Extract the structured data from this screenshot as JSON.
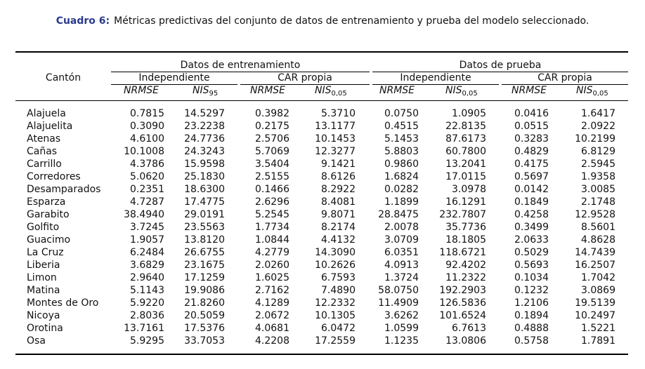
{
  "caption": {
    "label": "Cuadro 6:",
    "text": "Métricas predictivas del conjunto de datos de entrenamiento y prueba del modelo seleccionado."
  },
  "header": {
    "canton": "Cantón",
    "train_group": "Datos de entrenamiento",
    "test_group": "Datos de prueba",
    "independiente": "Independiente",
    "car_propia": "CAR propia",
    "metrics": [
      {
        "base": "NRMSE",
        "sub": ""
      },
      {
        "base": "NIS",
        "sub": "95"
      },
      {
        "base": "NRMSE",
        "sub": ""
      },
      {
        "base": "NIS",
        "sub": "0,05"
      },
      {
        "base": "NRMSE",
        "sub": ""
      },
      {
        "base": "NIS",
        "sub": "0,05"
      },
      {
        "base": "NRMSE",
        "sub": ""
      },
      {
        "base": "NIS",
        "sub": "0,05"
      }
    ]
  },
  "rows": [
    {
      "name": "Alajuela",
      "values": [
        "0.7815",
        "14.5297",
        "0.3982",
        "5.3710",
        "0.0750",
        "1.0905",
        "0.0416",
        "1.6417"
      ]
    },
    {
      "name": "Alajuelita",
      "values": [
        "0.3090",
        "23.2238",
        "0.2175",
        "13.1177",
        "0.4515",
        "22.8135",
        "0.0515",
        "2.0922"
      ]
    },
    {
      "name": "Atenas",
      "values": [
        "4.6100",
        "24.7736",
        "2.5706",
        "10.1453",
        "5.1453",
        "87.6173",
        "0.3283",
        "10.2199"
      ]
    },
    {
      "name": "Cañas",
      "values": [
        "10.1008",
        "24.3243",
        "5.7069",
        "12.3277",
        "5.8803",
        "60.7800",
        "0.4829",
        "6.8129"
      ]
    },
    {
      "name": "Carrillo",
      "values": [
        "4.3786",
        "15.9598",
        "3.5404",
        "9.1421",
        "0.9860",
        "13.2041",
        "0.4175",
        "2.5945"
      ]
    },
    {
      "name": "Corredores",
      "values": [
        "5.0620",
        "25.1830",
        "2.5155",
        "8.6126",
        "1.6824",
        "17.0115",
        "0.5697",
        "1.9358"
      ]
    },
    {
      "name": "Desamparados",
      "values": [
        "0.2351",
        "18.6300",
        "0.1466",
        "8.2922",
        "0.0282",
        "3.0978",
        "0.0142",
        "3.0085"
      ]
    },
    {
      "name": "Esparza",
      "values": [
        "4.7287",
        "17.4775",
        "2.6296",
        "8.4081",
        "1.1899",
        "16.1291",
        "0.1849",
        "2.1748"
      ]
    },
    {
      "name": "Garabito",
      "values": [
        "38.4940",
        "29.0191",
        "5.2545",
        "9.8071",
        "28.8475",
        "232.7807",
        "0.4258",
        "12.9528"
      ]
    },
    {
      "name": "Golfito",
      "values": [
        "3.7245",
        "23.5563",
        "1.7734",
        "8.2174",
        "2.0078",
        "35.7736",
        "0.3499",
        "8.5601"
      ]
    },
    {
      "name": "Guacimo",
      "values": [
        "1.9057",
        "13.8120",
        "1.0844",
        "4.4132",
        "3.0709",
        "18.1805",
        "2.0633",
        "4.8628"
      ]
    },
    {
      "name": "La Cruz",
      "values": [
        "6.2484",
        "26.6755",
        "4.2779",
        "14.3090",
        "6.0351",
        "118.6721",
        "0.5029",
        "14.7439"
      ]
    },
    {
      "name": "Liberia",
      "values": [
        "3.6829",
        "23.1675",
        "2.0260",
        "10.2626",
        "4.0913",
        "92.4202",
        "0.5693",
        "16.2507"
      ]
    },
    {
      "name": "Limon",
      "values": [
        "2.9640",
        "17.1259",
        "1.6025",
        "6.7593",
        "1.3724",
        "11.2322",
        "0.1034",
        "1.7042"
      ]
    },
    {
      "name": "Matina",
      "values": [
        "5.1143",
        "19.9086",
        "2.7162",
        "7.4890",
        "58.0750",
        "192.2903",
        "0.1232",
        "3.0869"
      ]
    },
    {
      "name": "Montes de Oro",
      "values": [
        "5.9220",
        "21.8260",
        "4.1289",
        "12.2332",
        "11.4909",
        "126.5836",
        "1.2106",
        "19.5139"
      ]
    },
    {
      "name": "Nicoya",
      "values": [
        "2.8036",
        "20.5059",
        "2.0672",
        "10.1305",
        "3.6262",
        "101.6524",
        "0.1894",
        "10.2497"
      ]
    },
    {
      "name": "Orotina",
      "values": [
        "13.7161",
        "17.5376",
        "4.0681",
        "6.0472",
        "1.0599",
        "6.7613",
        "0.4888",
        "1.5221"
      ]
    },
    {
      "name": "Osa",
      "values": [
        "5.9295",
        "33.7053",
        "4.2208",
        "17.2559",
        "1.1235",
        "13.0806",
        "0.5758",
        "1.7891"
      ]
    }
  ]
}
